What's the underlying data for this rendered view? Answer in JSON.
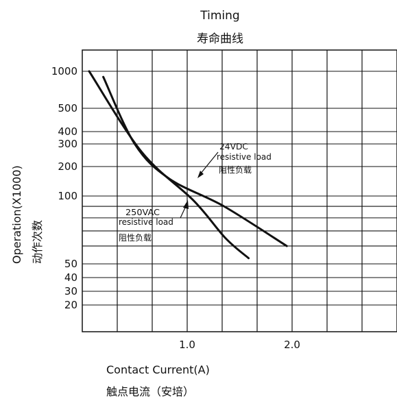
{
  "chart_data": {
    "type": "line",
    "title": "Timing",
    "subtitle": "寿命曲线",
    "xlabel": "Contact Current(A)",
    "xlabel_cn": "触点电流（安培）",
    "ylabel": "Operation(X1000)",
    "ylabel_cn": "动作次数",
    "xlim": [
      0,
      2.6
    ],
    "y_ticks": [
      {
        "value": 1000,
        "label": "1000"
      },
      {
        "value": 500,
        "label": "500"
      },
      {
        "value": 400,
        "label": "400"
      },
      {
        "value": 300,
        "label": "300"
      },
      {
        "value": 200,
        "label": "200"
      },
      {
        "value": 100,
        "label": "100"
      },
      {
        "value": 50,
        "label": "50"
      },
      {
        "value": 40,
        "label": "40"
      },
      {
        "value": 30,
        "label": "30"
      },
      {
        "value": 20,
        "label": "20"
      }
    ],
    "x_ticks": [
      {
        "value": 1.0,
        "label": "1.0"
      },
      {
        "value": 2.0,
        "label": "2.0"
      }
    ],
    "grid": true,
    "series": [
      {
        "name": "24VDC resistive load 阻性负载",
        "name_lines": [
          "24VDC",
          "resistive load",
          "阻性负载"
        ],
        "x": [
          0.2,
          0.5,
          0.83,
          1.35,
          1.95
        ],
        "y": [
          900,
          300,
          150,
          90,
          60
        ]
      },
      {
        "name": "250VAC resistive load 阻性负载",
        "name_lines": [
          "250VAC",
          "resistive load",
          "阻性负载"
        ],
        "x": [
          0.0,
          0.5,
          1.0,
          1.3,
          1.52
        ],
        "y": [
          1000,
          260,
          95,
          65,
          53
        ]
      }
    ]
  }
}
